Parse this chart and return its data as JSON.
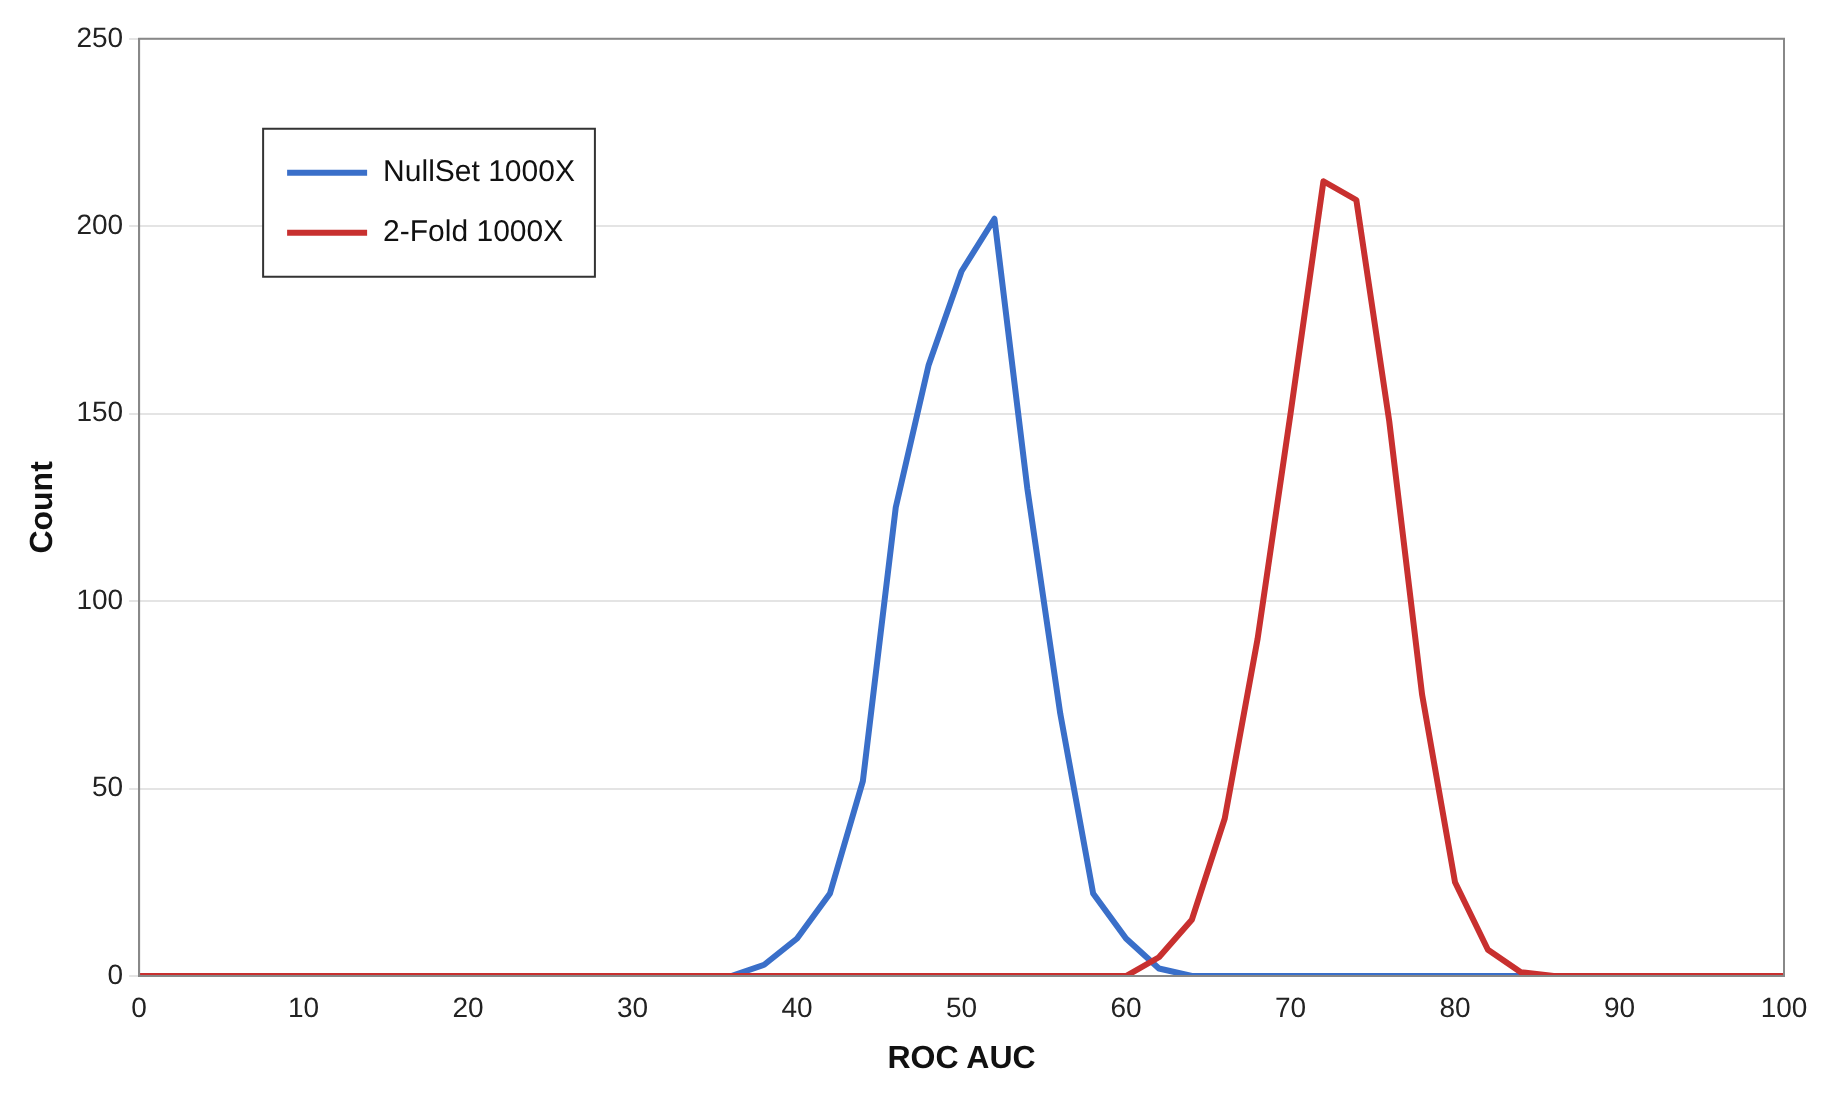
{
  "chart_data": {
    "type": "line",
    "xlabel": "ROC AUC",
    "ylabel": "Count",
    "x": [
      0,
      2,
      4,
      6,
      8,
      10,
      12,
      14,
      16,
      18,
      20,
      22,
      24,
      26,
      28,
      30,
      32,
      34,
      36,
      38,
      40,
      42,
      44,
      46,
      48,
      50,
      52,
      54,
      56,
      58,
      60,
      62,
      64,
      66,
      68,
      70,
      72,
      74,
      76,
      78,
      80,
      82,
      84,
      86,
      88,
      90,
      92,
      94,
      96,
      98,
      100
    ],
    "series": [
      {
        "name": "NullSet 1000X",
        "color": "#3a6fc9",
        "values": [
          null,
          null,
          null,
          null,
          null,
          null,
          null,
          null,
          null,
          null,
          null,
          null,
          null,
          null,
          null,
          null,
          null,
          null,
          0,
          3,
          10,
          22,
          52,
          125,
          163,
          188,
          202,
          130,
          70,
          22,
          10,
          2,
          0,
          0,
          0,
          0,
          0,
          0,
          0,
          0,
          0,
          0,
          0,
          null,
          null,
          null,
          null,
          null,
          null,
          null,
          null
        ]
      },
      {
        "name": "2-Fold 1000X",
        "color": "#c8302f",
        "values": [
          0,
          0,
          0,
          0,
          0,
          0,
          0,
          0,
          0,
          0,
          0,
          0,
          0,
          0,
          0,
          0,
          0,
          0,
          0,
          0,
          0,
          0,
          0,
          0,
          0,
          0,
          0,
          0,
          0,
          0,
          0,
          5,
          15,
          42,
          90,
          150,
          212,
          207,
          148,
          75,
          25,
          7,
          1,
          0,
          0,
          0,
          0,
          0,
          0,
          0,
          0
        ]
      }
    ],
    "xlim": [
      0,
      100
    ],
    "xticks": [
      0,
      10,
      20,
      30,
      40,
      50,
      60,
      70,
      80,
      90,
      100
    ],
    "ylim": [
      0,
      250
    ],
    "yticks": [
      0,
      50,
      100,
      150,
      200,
      250
    ],
    "grid": "y",
    "legend": "top left",
    "marker": "none",
    "line_style": "solid"
  }
}
